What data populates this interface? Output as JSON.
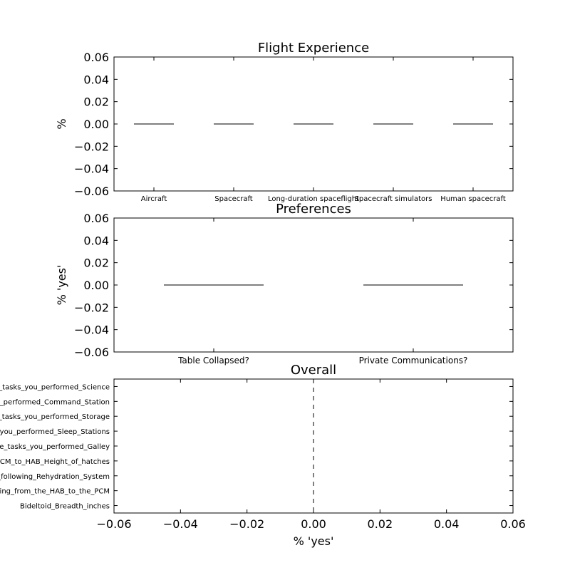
{
  "chart_data": [
    {
      "type": "bar",
      "title": "Flight Experience",
      "ylabel": "%",
      "xlabel": "",
      "ylim": [
        -0.06,
        0.06
      ],
      "yticks": [
        "0.06",
        "0.04",
        "0.02",
        "0.00",
        "−0.02",
        "−0.04",
        "−0.06"
      ],
      "yticks_values": [
        0.06,
        0.04,
        0.02,
        0.0,
        -0.02,
        -0.04,
        -0.06
      ],
      "categories": [
        "Aircraft",
        "Spacecraft",
        "Long-duration spaceflight",
        "Spacecraft simulators",
        "Human spacecraft"
      ],
      "values": [
        0,
        0,
        0,
        0,
        0
      ]
    },
    {
      "type": "bar",
      "title": "Preferences",
      "ylabel": "% 'yes'",
      "xlabel": "",
      "ylim": [
        -0.06,
        0.06
      ],
      "yticks": [
        "0.06",
        "0.04",
        "0.02",
        "0.00",
        "−0.02",
        "−0.04",
        "−0.06"
      ],
      "yticks_values": [
        0.06,
        0.04,
        0.02,
        0.0,
        -0.02,
        -0.04,
        -0.06
      ],
      "categories": [
        "Table Collapsed?",
        "Private Communications?"
      ],
      "values": [
        0,
        0
      ]
    },
    {
      "type": "bar",
      "orientation": "horizontal",
      "title": "Overall",
      "xlabel": "% 'yes'",
      "ylabel": "",
      "xlim": [
        -0.06,
        0.06
      ],
      "xticks": [
        "−0.06",
        "−0.04",
        "−0.02",
        "0.00",
        "0.02",
        "0.04",
        "0.06"
      ],
      "xticks_values": [
        -0.06,
        -0.04,
        -0.02,
        0.0,
        0.02,
        0.04,
        0.06
      ],
      "categories": [
        "Rate_the_tasks_you_performed_Science",
        "Rate_the_tasks_you_performed_Command_Station",
        "Rate_the_tasks_you_performed_Storage",
        "Rate_the_tasks_you_performed_Sleep_Stations",
        "Rate_the_tasks_you_performed_Galley",
        "Ingress_from_the_PCM_to_HAB_Height_of_hatches",
        "Rate_the_following_Rehydration_System",
        "Egress_translating_and_descending_from_the_HAB_to_the_PCM",
        "Bideltoid_Breadth_inches"
      ],
      "values": [
        0,
        0,
        0,
        0,
        0,
        0,
        0,
        0,
        0
      ],
      "reference_line": {
        "x": 0,
        "style": "dashed"
      }
    }
  ]
}
